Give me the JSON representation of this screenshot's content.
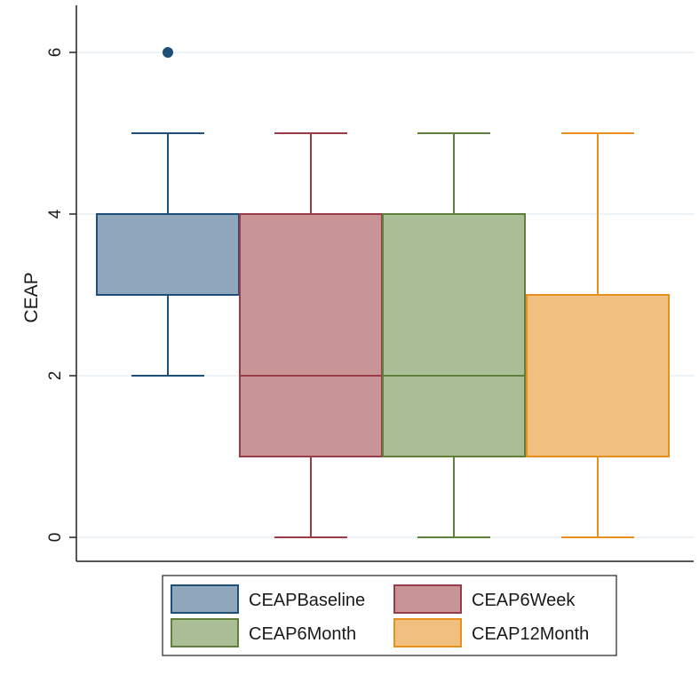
{
  "chart_data": {
    "type": "boxplot",
    "title": "",
    "xlabel": "",
    "ylabel": "CEAP",
    "ylim": [
      -0.3,
      6.3
    ],
    "yticks": [
      0,
      2,
      4,
      6
    ],
    "grid": true,
    "legend_position": "bottom",
    "series": [
      {
        "name": "CEAPBaseline",
        "color": "#1f4e79",
        "fill": "#90a8be",
        "whisker_low": 2,
        "q1": 3,
        "median": 4,
        "q3": 4,
        "whisker_high": 5,
        "outliers": [
          6
        ]
      },
      {
        "name": "CEAP6Week",
        "color": "#9b3b47",
        "fill": "#c89496",
        "whisker_low": 0,
        "q1": 1,
        "median": 2,
        "q3": 4,
        "whisker_high": 5,
        "outliers": []
      },
      {
        "name": "CEAP6Month",
        "color": "#5f7f3b",
        "fill": "#abbd95",
        "whisker_low": 0,
        "q1": 1,
        "median": 2,
        "q3": 4,
        "whisker_high": 5,
        "outliers": []
      },
      {
        "name": "CEAP12Month",
        "color": "#e8901e",
        "fill": "#f1c07f",
        "whisker_low": 0,
        "q1": 1,
        "median": 1,
        "q3": 3,
        "whisker_high": 5,
        "outliers": []
      }
    ]
  }
}
